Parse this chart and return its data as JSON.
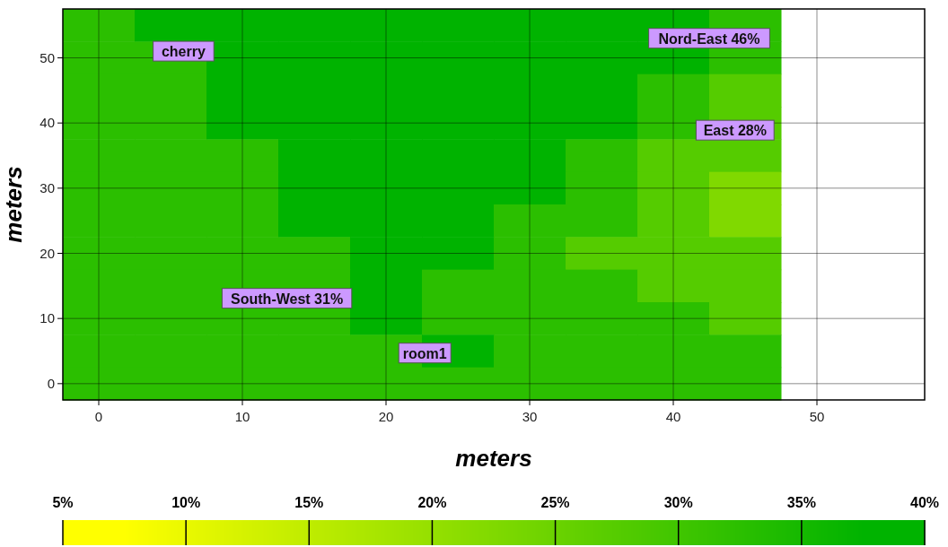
{
  "chart_data": {
    "type": "heatmap",
    "xlabel": "meters",
    "ylabel": "meters",
    "grid": true,
    "categories": [
      "0",
      null,
      "10",
      null,
      "20",
      null,
      "30",
      null,
      "40",
      null,
      "50",
      null
    ],
    "y_categories": [
      null,
      "50",
      null,
      "40",
      null,
      "30",
      null,
      "20",
      null,
      "10",
      null,
      "0"
    ],
    "clim": [
      5,
      40
    ],
    "cticks": [
      {
        "value": 5,
        "label": "5%"
      },
      {
        "value": 10,
        "label": "10%"
      },
      {
        "value": 15,
        "label": "15%"
      },
      {
        "value": 20,
        "label": "20%"
      },
      {
        "value": 25,
        "label": "25%"
      },
      {
        "value": 30,
        "label": "30%"
      },
      {
        "value": 35,
        "label": "35%"
      },
      {
        "value": 40,
        "label": "40%"
      }
    ],
    "colors": [
      "#ffff00",
      "#d4f200",
      "#aae600",
      "#80d900",
      "#55cc00",
      "#2bbf00",
      "#00b300"
    ],
    "cells": [
      [
        32.5,
        37.5,
        37.5,
        37.5,
        37.5,
        37.5,
        37.5,
        37.5,
        37.5,
        32.5,
        null,
        null
      ],
      [
        32.5,
        32.5,
        37.5,
        37.5,
        37.5,
        37.5,
        37.5,
        37.5,
        37.5,
        32.5,
        null,
        null
      ],
      [
        32.5,
        32.5,
        37.5,
        37.5,
        37.5,
        37.5,
        37.5,
        37.5,
        32.5,
        27.5,
        null,
        null
      ],
      [
        32.5,
        32.5,
        37.5,
        37.5,
        37.5,
        37.5,
        37.5,
        37.5,
        32.5,
        27.5,
        null,
        null
      ],
      [
        32.5,
        32.5,
        32.5,
        37.5,
        37.5,
        37.5,
        37.5,
        32.5,
        27.5,
        27.5,
        null,
        null
      ],
      [
        32.5,
        32.5,
        32.5,
        37.5,
        37.5,
        37.5,
        37.5,
        32.5,
        27.5,
        22.5,
        null,
        null
      ],
      [
        32.5,
        32.5,
        32.5,
        37.5,
        37.5,
        37.5,
        32.5,
        32.5,
        27.5,
        22.5,
        null,
        null
      ],
      [
        32.5,
        32.5,
        32.5,
        32.5,
        37.5,
        37.5,
        32.5,
        27.5,
        27.5,
        27.5,
        null,
        null
      ],
      [
        32.5,
        32.5,
        32.5,
        32.5,
        37.5,
        32.5,
        32.5,
        32.5,
        27.5,
        27.5,
        null,
        null
      ],
      [
        32.5,
        32.5,
        32.5,
        32.5,
        37.5,
        32.5,
        32.5,
        32.5,
        32.5,
        27.5,
        null,
        null
      ],
      [
        32.5,
        32.5,
        32.5,
        32.5,
        32.5,
        37.5,
        32.5,
        32.5,
        32.5,
        32.5,
        null,
        null
      ],
      [
        32.5,
        32.5,
        32.5,
        32.5,
        32.5,
        32.5,
        32.5,
        32.5,
        32.5,
        32.5,
        null,
        null
      ]
    ],
    "annotations": [
      "cherry",
      "Nord-East 46%",
      "East 28%",
      "South-West 31%",
      "room1"
    ]
  }
}
